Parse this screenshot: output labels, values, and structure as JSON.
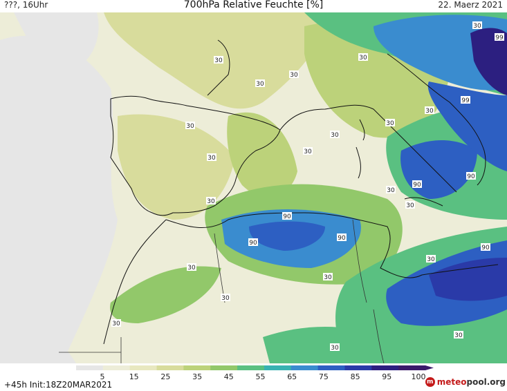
{
  "header": {
    "left": "???, 16Uhr",
    "title": "700hPa Relative Feuchte [%]",
    "date": "22. Maerz 2021"
  },
  "footer": {
    "run_info": "+45h  Init:18Z20MAR2021",
    "logo_text_a": "meteo",
    "logo_text_b": "pool",
    "logo_text_c": ".org"
  },
  "colorbar": {
    "ticks": [
      "5",
      "15",
      "25",
      "35",
      "45",
      "55",
      "65",
      "75",
      "85",
      "95",
      "100"
    ],
    "colors": [
      "#e6e6e6",
      "#ededd8",
      "#e8e8c0",
      "#d8dc9c",
      "#bcd27a",
      "#92c86a",
      "#5ac081",
      "#38b2b2",
      "#3a8ccf",
      "#2d5fc2",
      "#2a3aa8",
      "#2c1f80",
      "#3a1a6a"
    ]
  },
  "contour_labels": [
    "30",
    "30",
    "30",
    "30",
    "30",
    "30",
    "30",
    "30",
    "30",
    "30",
    "30",
    "30",
    "30",
    "30",
    "30",
    "30",
    "30",
    "30",
    "30",
    "30",
    "30",
    "90",
    "90",
    "90",
    "90",
    "90",
    "90",
    "99",
    "99"
  ]
}
